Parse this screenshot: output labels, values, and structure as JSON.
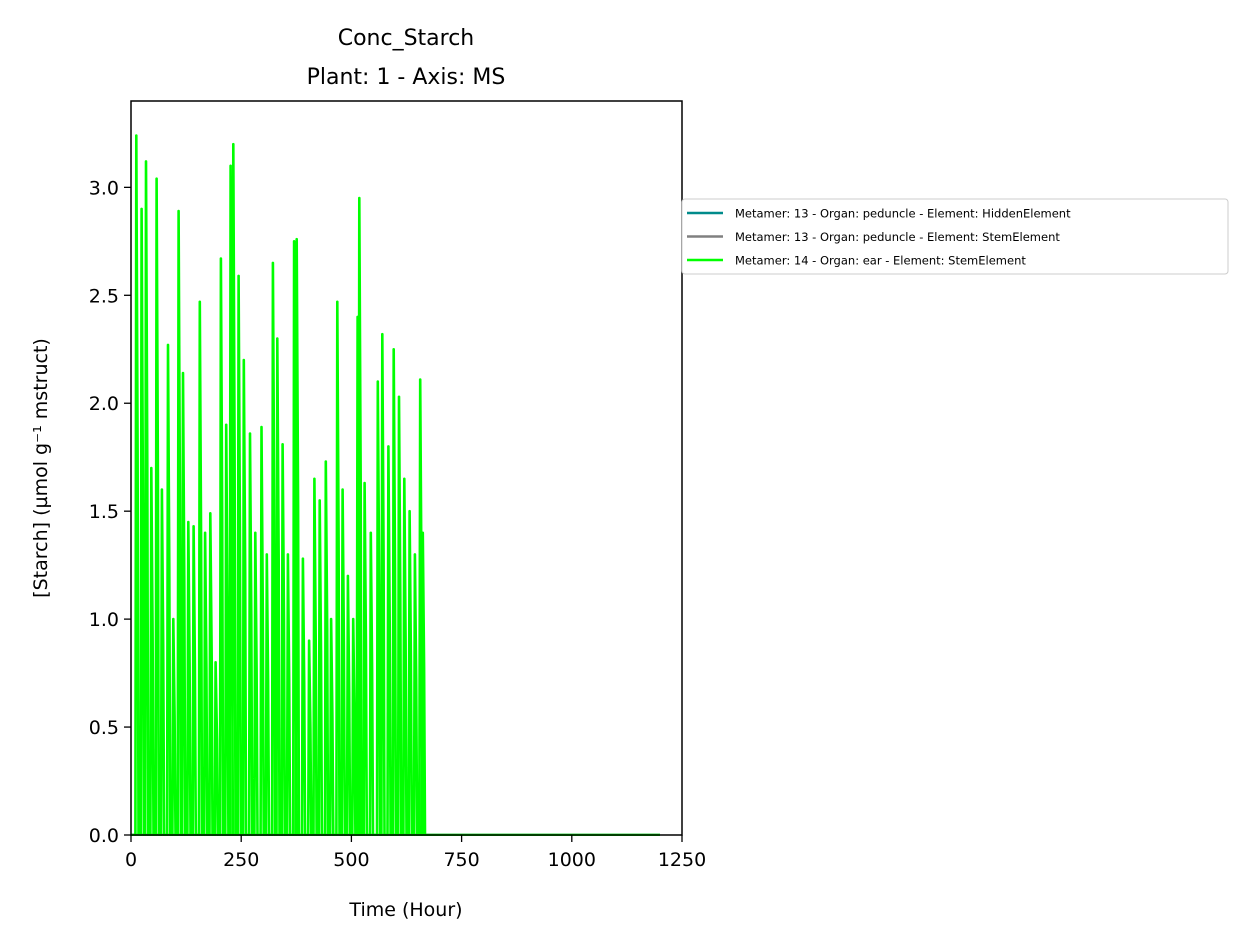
{
  "chart_data": {
    "type": "line",
    "title": "Conc_Starch",
    "subtitle": "Plant: 1 - Axis: MS",
    "xlabel": "Time (Hour)",
    "ylabel": "[Starch] (µmol g⁻¹ mstruct)",
    "xlim": [
      0,
      1250
    ],
    "ylim": [
      0,
      3.4
    ],
    "xticks": [
      0,
      250,
      500,
      750,
      1000,
      1250
    ],
    "xtick_labels": [
      "0",
      "250",
      "500",
      "750",
      "1000",
      "1250"
    ],
    "yticks": [
      0.0,
      0.5,
      1.0,
      1.5,
      2.0,
      2.5,
      3.0
    ],
    "ytick_labels": [
      "0.0",
      "0.5",
      "1.0",
      "1.5",
      "2.0",
      "2.5",
      "3.0"
    ],
    "grid": false,
    "legend_position": "outside-right",
    "series": [
      {
        "name": "Metamer: 13 - Organ: peduncle - Element: HiddenElement",
        "color": "#008b8b",
        "x": [
          0,
          1200
        ],
        "y": [
          0.0,
          0.0
        ]
      },
      {
        "name": "Metamer: 13 - Organ: peduncle - Element: StemElement",
        "color": "#808080",
        "x": [
          0,
          1200
        ],
        "y": [
          0.0,
          0.0
        ]
      },
      {
        "name": "Metamer: 14 - Organ: ear - Element: StemElement",
        "color": "#00ff00",
        "peaks": [
          [
            12,
            3.24
          ],
          [
            24,
            2.9
          ],
          [
            34,
            3.12
          ],
          [
            46,
            1.7
          ],
          [
            58,
            3.04
          ],
          [
            70,
            1.6
          ],
          [
            84,
            2.27
          ],
          [
            96,
            1.0
          ],
          [
            108,
            2.89
          ],
          [
            118,
            2.14
          ],
          [
            130,
            1.45
          ],
          [
            142,
            1.43
          ],
          [
            156,
            2.47
          ],
          [
            168,
            1.4
          ],
          [
            180,
            1.49
          ],
          [
            192,
            0.8
          ],
          [
            204,
            2.67
          ],
          [
            216,
            1.9
          ],
          [
            226,
            3.1
          ],
          [
            232,
            3.2
          ],
          [
            244,
            2.59
          ],
          [
            256,
            2.2
          ],
          [
            270,
            1.86
          ],
          [
            282,
            1.4
          ],
          [
            296,
            1.89
          ],
          [
            308,
            1.3
          ],
          [
            322,
            2.65
          ],
          [
            332,
            2.3
          ],
          [
            344,
            1.81
          ],
          [
            356,
            1.3
          ],
          [
            370,
            2.75
          ],
          [
            376,
            2.76
          ],
          [
            390,
            1.28
          ],
          [
            404,
            0.9
          ],
          [
            416,
            1.65
          ],
          [
            428,
            1.55
          ],
          [
            442,
            1.73
          ],
          [
            454,
            1.0
          ],
          [
            468,
            2.47
          ],
          [
            480,
            1.6
          ],
          [
            492,
            1.2
          ],
          [
            504,
            1.0
          ],
          [
            514,
            2.4
          ],
          [
            518,
            2.95
          ],
          [
            530,
            1.63
          ],
          [
            544,
            1.4
          ],
          [
            560,
            2.1
          ],
          [
            570,
            2.32
          ],
          [
            584,
            1.8
          ],
          [
            596,
            2.25
          ],
          [
            608,
            2.03
          ],
          [
            620,
            1.65
          ],
          [
            632,
            1.5
          ],
          [
            644,
            1.3
          ],
          [
            656,
            2.11
          ],
          [
            662,
            1.4
          ]
        ]
      }
    ]
  }
}
